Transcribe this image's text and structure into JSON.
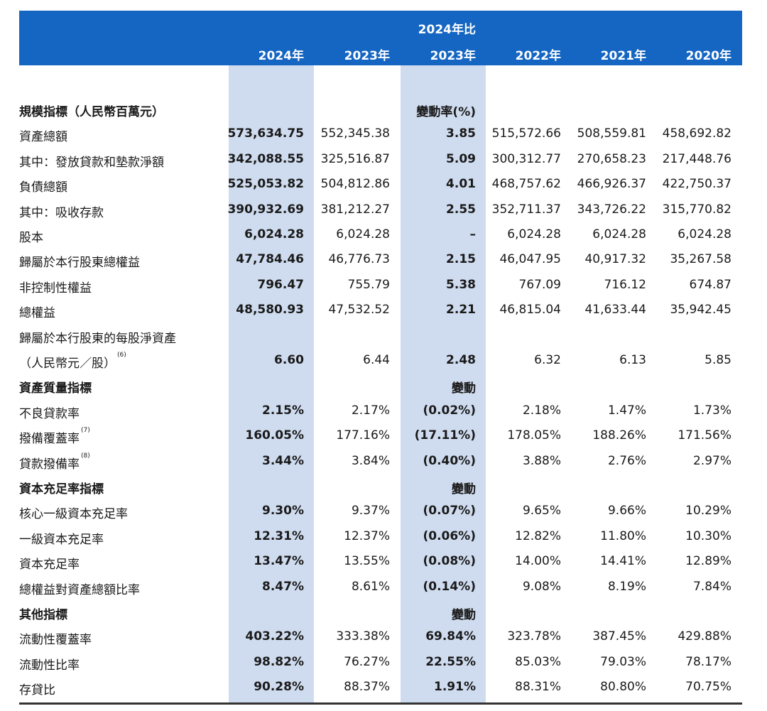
{
  "header": {
    "top_label": "2024年比",
    "columns": [
      "2024年",
      "2023年",
      "2023年",
      "2022年",
      "2021年",
      "2020年"
    ]
  },
  "rows": [
    {
      "type": "section",
      "label": "規模指標（人民幣百萬元）",
      "note": "變動率(%)"
    },
    {
      "type": "data",
      "label": "資產總額",
      "values": [
        "573,634.75",
        "552,345.38",
        "3.85",
        "515,572.66",
        "508,559.81",
        "458,692.82"
      ]
    },
    {
      "type": "data",
      "label": "其中：發放貸款和墊款淨額",
      "values": [
        "342,088.55",
        "325,516.87",
        "5.09",
        "300,312.77",
        "270,658.23",
        "217,448.76"
      ]
    },
    {
      "type": "data",
      "label": "負債總額",
      "values": [
        "525,053.82",
        "504,812.86",
        "4.01",
        "468,757.62",
        "466,926.37",
        "422,750.37"
      ]
    },
    {
      "type": "data",
      "label": "其中：吸收存款",
      "values": [
        "390,932.69",
        "381,212.27",
        "2.55",
        "352,711.37",
        "343,726.22",
        "315,770.82"
      ]
    },
    {
      "type": "data",
      "label": "股本",
      "values": [
        "6,024.28",
        "6,024.28",
        "–",
        "6,024.28",
        "6,024.28",
        "6,024.28"
      ]
    },
    {
      "type": "data",
      "label": "歸屬於本行股東總權益",
      "values": [
        "47,784.46",
        "46,776.73",
        "2.15",
        "46,047.95",
        "40,917.32",
        "35,267.58"
      ]
    },
    {
      "type": "data",
      "label": "非控制性權益",
      "values": [
        "796.47",
        "755.79",
        "5.38",
        "767.09",
        "716.12",
        "674.87"
      ]
    },
    {
      "type": "data",
      "label": "總權益",
      "values": [
        "48,580.93",
        "47,532.52",
        "2.21",
        "46,815.04",
        "41,633.44",
        "35,942.45"
      ]
    },
    {
      "type": "label_only",
      "label": "歸屬於本行股東的每股淨資產"
    },
    {
      "type": "data",
      "label": "（人民幣元／股）",
      "sup": "(6)",
      "values": [
        "6.60",
        "6.44",
        "2.48",
        "6.32",
        "6.13",
        "5.85"
      ]
    },
    {
      "type": "section",
      "label": "資產質量指標",
      "note": "變動"
    },
    {
      "type": "data",
      "label": "不良貸款率",
      "values": [
        "2.15%",
        "2.17%",
        "(0.02%)",
        "2.18%",
        "1.47%",
        "1.73%"
      ]
    },
    {
      "type": "data",
      "label": "撥備覆蓋率",
      "sup": "(7)",
      "values": [
        "160.05%",
        "177.16%",
        "(17.11%)",
        "178.05%",
        "188.26%",
        "171.56%"
      ]
    },
    {
      "type": "data",
      "label": "貸款撥備率",
      "sup": "(8)",
      "values": [
        "3.44%",
        "3.84%",
        "(0.40%)",
        "3.88%",
        "2.76%",
        "2.97%"
      ]
    },
    {
      "type": "section",
      "label": "資本充足率指標",
      "note": "變動"
    },
    {
      "type": "data",
      "label": "核心一級資本充足率",
      "values": [
        "9.30%",
        "9.37%",
        "(0.07%)",
        "9.65%",
        "9.66%",
        "10.29%"
      ]
    },
    {
      "type": "data",
      "label": "一級資本充足率",
      "values": [
        "12.31%",
        "12.37%",
        "(0.06%)",
        "12.82%",
        "11.80%",
        "10.30%"
      ]
    },
    {
      "type": "data",
      "label": "資本充足率",
      "values": [
        "13.47%",
        "13.55%",
        "(0.08%)",
        "14.00%",
        "14.41%",
        "12.89%"
      ]
    },
    {
      "type": "data",
      "label": "總權益對資產總額比率",
      "values": [
        "8.47%",
        "8.61%",
        "(0.14%)",
        "9.08%",
        "8.19%",
        "7.84%"
      ]
    },
    {
      "type": "section",
      "label": "其他指標",
      "note": "變動"
    },
    {
      "type": "data",
      "label": "流動性覆蓋率",
      "values": [
        "403.22%",
        "333.38%",
        "69.84%",
        "323.78%",
        "387.45%",
        "429.88%"
      ]
    },
    {
      "type": "data",
      "label": "流動性比率",
      "values": [
        "98.82%",
        "76.27%",
        "22.55%",
        "85.03%",
        "79.03%",
        "78.17%"
      ]
    },
    {
      "type": "data",
      "label": "存貸比",
      "values": [
        "90.28%",
        "88.37%",
        "1.91%",
        "88.31%",
        "80.80%",
        "70.75%"
      ]
    }
  ]
}
